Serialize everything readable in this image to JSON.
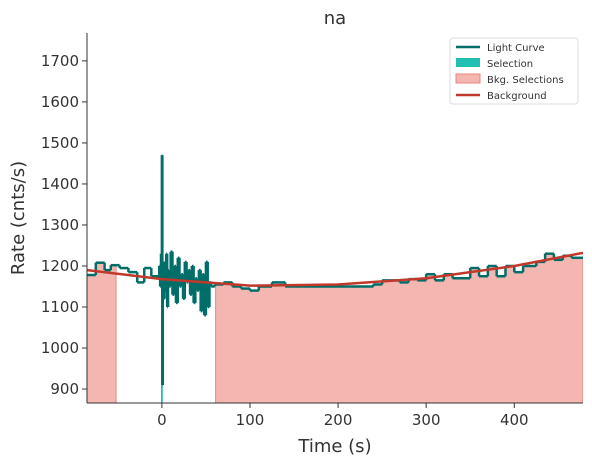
{
  "chart_data": {
    "type": "step",
    "title": "na",
    "x_label": "Time (s)",
    "y_label": "Rate (cnts/s)",
    "xlim": [
      -85,
      478
    ],
    "ylim": [
      866,
      1768
    ],
    "xticks": [
      0,
      100,
      200,
      300,
      400
    ],
    "yticks": [
      900,
      1000,
      1100,
      1200,
      1300,
      1400,
      1500,
      1600,
      1700
    ],
    "legend": "upper right",
    "series": [
      {
        "name": "Light Curve",
        "color": "#006e68",
        "x": [
          -85,
          -75,
          -65,
          -58,
          -48,
          -38,
          -28,
          -20,
          -12,
          -3,
          -2,
          -1,
          0,
          0.5,
          1,
          2,
          3,
          4,
          5,
          6,
          7,
          8,
          10,
          12,
          14,
          16,
          18,
          20,
          22,
          24,
          26,
          28,
          30,
          32,
          34,
          36,
          38,
          40,
          42,
          44,
          46,
          48,
          50,
          52,
          54,
          56,
          60,
          70,
          80,
          90,
          100,
          110,
          125,
          140,
          160,
          240,
          250,
          270,
          280,
          290,
          300,
          310,
          320,
          330,
          350,
          360,
          370,
          380,
          390,
          400,
          410,
          425,
          435,
          445,
          455,
          465
        ],
        "values": [
          1178,
          1208,
          1190,
          1202,
          1195,
          1185,
          1160,
          1195,
          1175,
          1200,
          1150,
          1230,
          1470,
          910,
          1180,
          1120,
          1210,
          1140,
          1230,
          1100,
          1190,
          1150,
          1235,
          1130,
          1200,
          1110,
          1220,
          1150,
          1180,
          1120,
          1210,
          1160,
          1190,
          1130,
          1200,
          1110,
          1170,
          1140,
          1190,
          1090,
          1180,
          1080,
          1210,
          1100,
          1160,
          1150,
          1155,
          1160,
          1150,
          1145,
          1140,
          1150,
          1160,
          1150,
          1150,
          1155,
          1165,
          1160,
          1168,
          1165,
          1180,
          1165,
          1180,
          1170,
          1195,
          1175,
          1200,
          1175,
          1200,
          1185,
          1200,
          1210,
          1230,
          1215,
          1225,
          1220
        ]
      },
      {
        "name": "Selection",
        "color": "#1fbfb1",
        "ranges": [
          [
            -1,
            1
          ]
        ]
      },
      {
        "name": "Bkg. Selections",
        "color": "#f4b6b0",
        "edge": "#e8867c",
        "ranges": [
          [
            -85,
            -52
          ],
          [
            61,
            478
          ]
        ]
      },
      {
        "name": "Background",
        "color": "#c0392b",
        "x": [
          -85,
          0,
          100,
          200,
          300,
          400,
          478
        ],
        "values": [
          1190,
          1168,
          1152,
          1155,
          1170,
          1200,
          1232
        ]
      }
    ]
  }
}
